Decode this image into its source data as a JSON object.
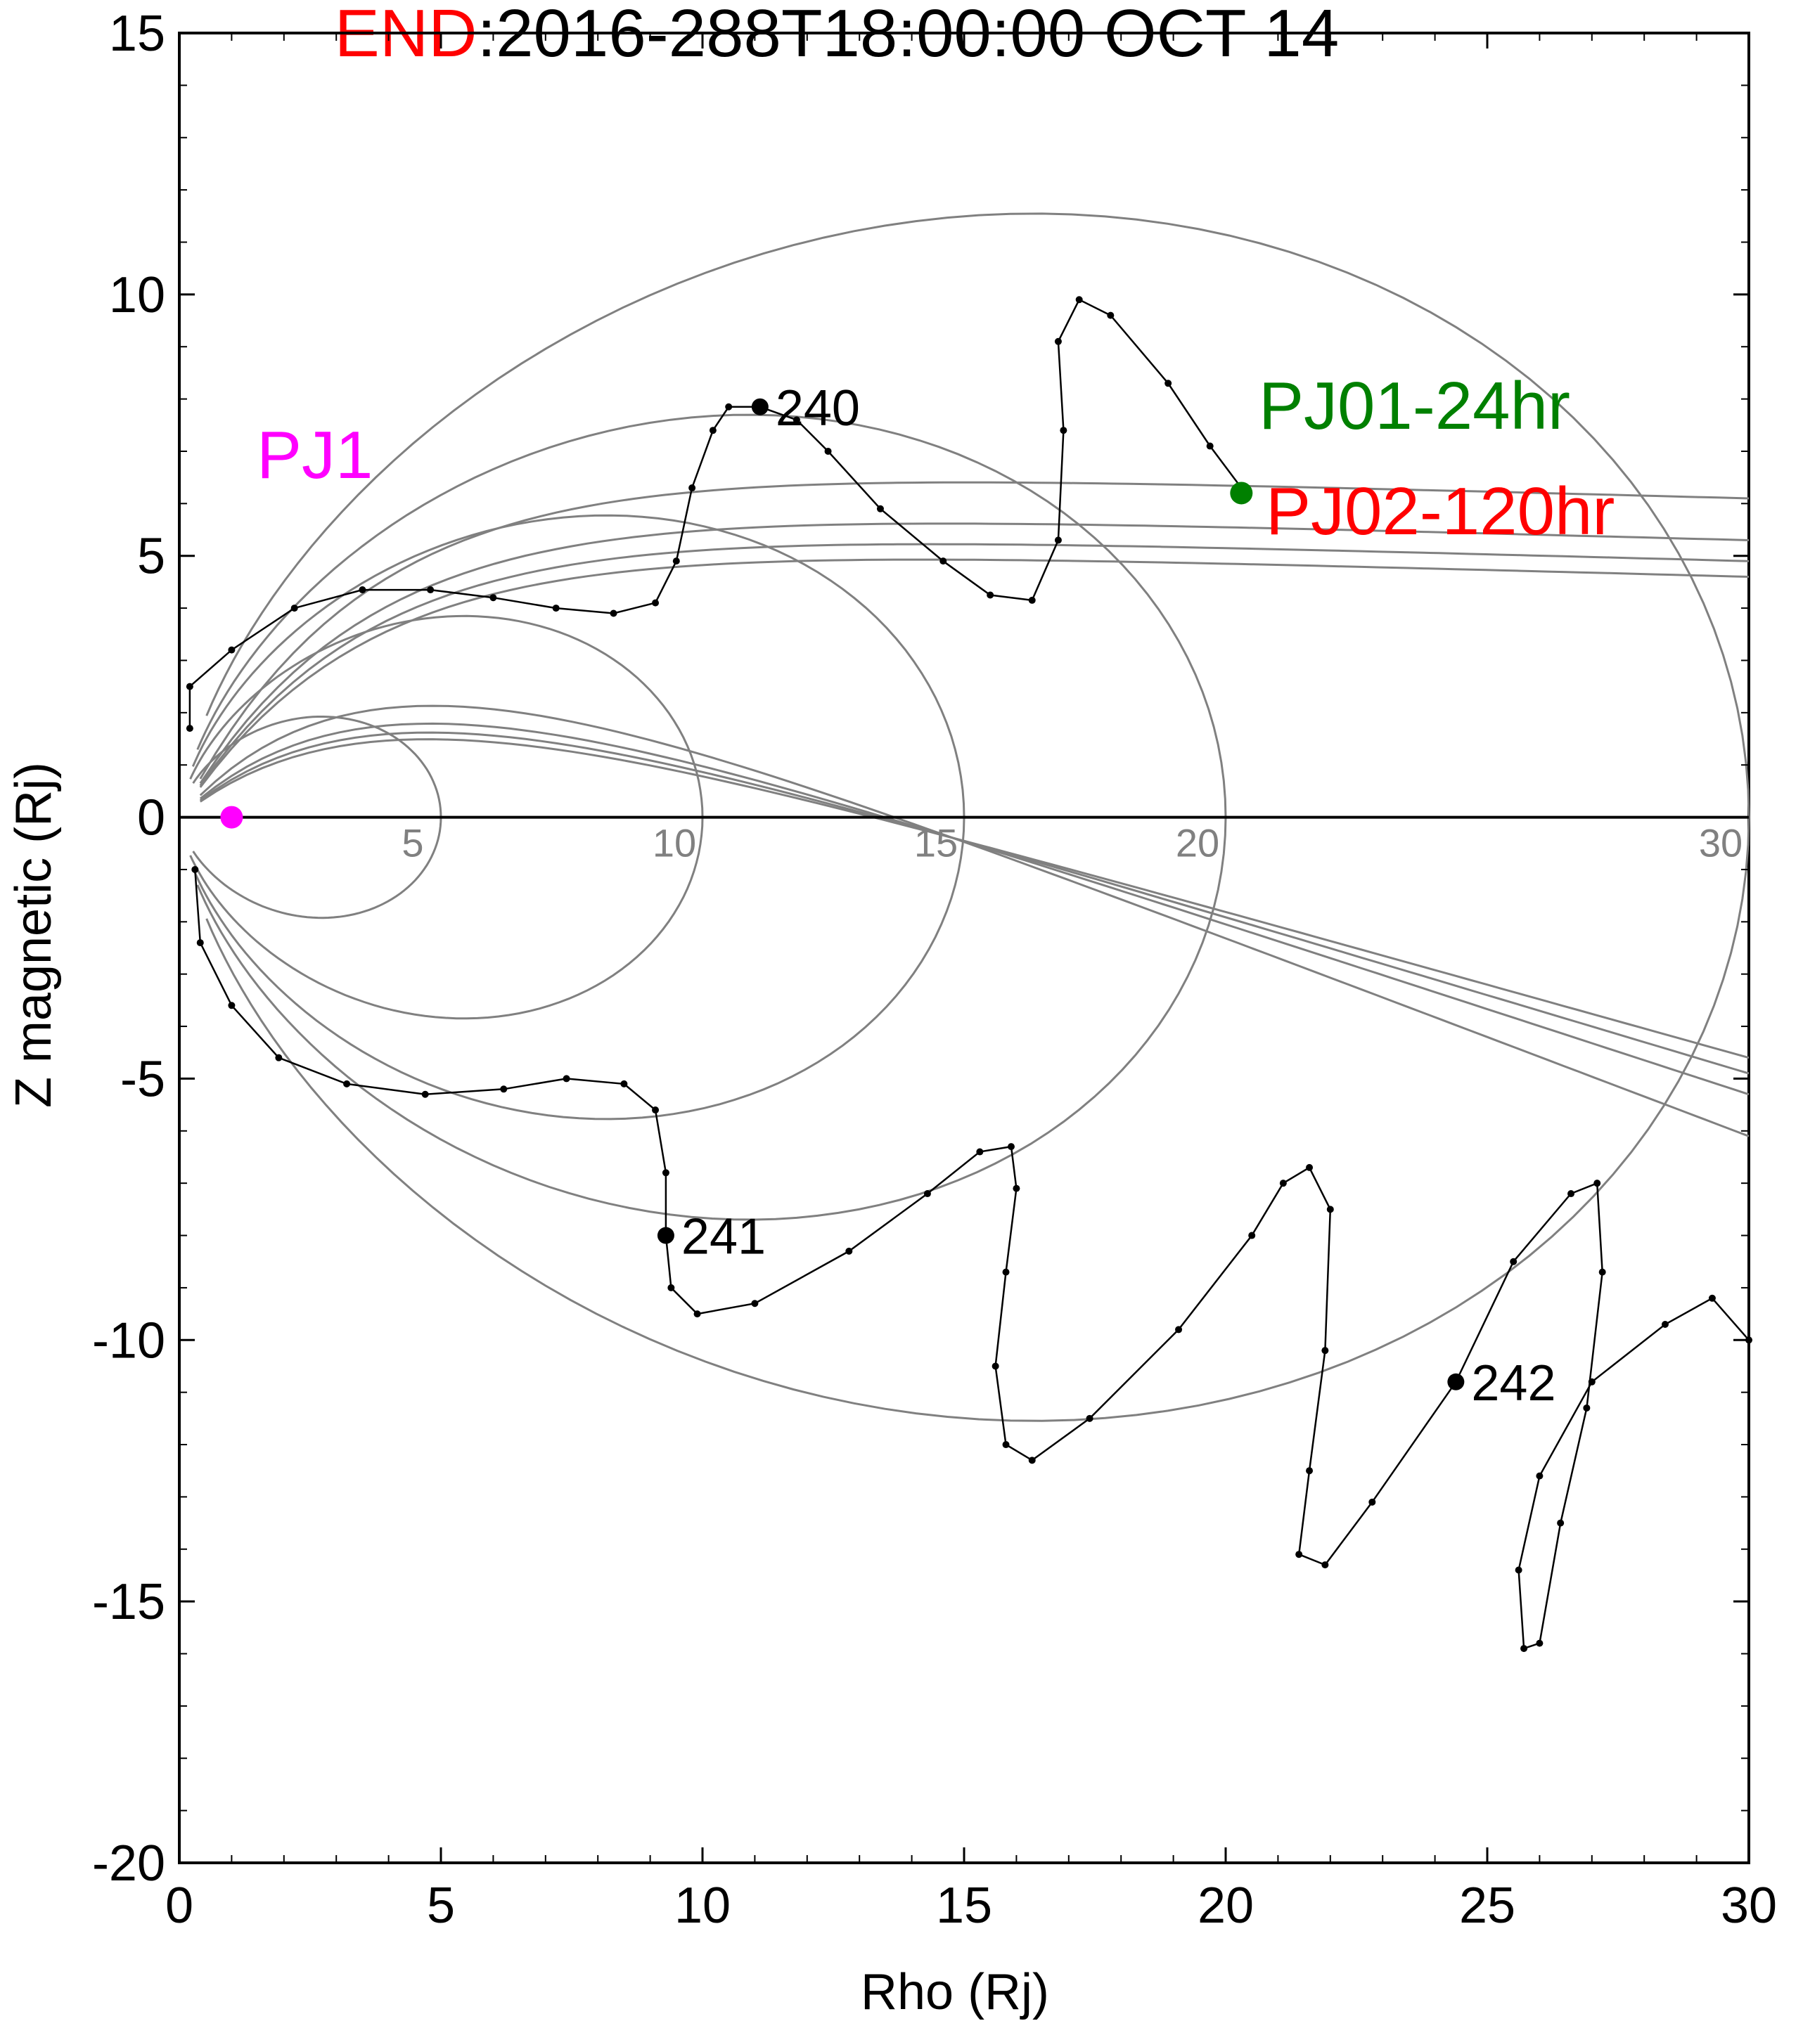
{
  "title": {
    "prefix": "END",
    "prefix_color": "#ff0000",
    "text": ":2016-288T18:00:00 OCT 14"
  },
  "chart_data": {
    "type": "line",
    "xlabel": "Rho (Rj)",
    "ylabel": "Z magnetic (Rj)",
    "xlim": [
      0,
      30
    ],
    "ylim": [
      -20,
      15
    ],
    "x_ticks": [
      "0",
      "5",
      "10",
      "15",
      "20",
      "25",
      "30"
    ],
    "y_ticks": [
      "15",
      "10",
      "5",
      "0",
      "-5",
      "-10",
      "-15",
      "-20"
    ],
    "grid": false,
    "field_lines": {
      "color": "#808080",
      "closed_loop_equator_crossings": [
        5,
        10,
        15,
        20,
        30
      ],
      "crossing_labels": [
        "5",
        "10",
        "15",
        "20",
        "30"
      ],
      "open_lines_asymptotes_north": [
        6.1,
        5.3,
        4.9,
        4.6
      ],
      "open_lines_asymptotes_south": [
        -6.1,
        -5.3,
        -4.9,
        -4.6
      ]
    },
    "trajectory": {
      "color": "#000000",
      "points": [
        [
          0.2,
          1.7
        ],
        [
          0.2,
          2.5
        ],
        [
          1.0,
          3.2
        ],
        [
          2.2,
          4.0
        ],
        [
          3.5,
          4.35
        ],
        [
          4.8,
          4.35
        ],
        [
          6.0,
          4.2
        ],
        [
          7.2,
          4.0
        ],
        [
          8.3,
          3.9
        ],
        [
          9.1,
          4.1
        ],
        [
          9.5,
          4.9
        ],
        [
          9.8,
          6.3
        ],
        [
          10.2,
          7.4
        ],
        [
          10.5,
          7.85
        ],
        [
          11.1,
          7.85
        ],
        [
          11.8,
          7.6
        ],
        [
          12.4,
          7.0
        ],
        [
          13.4,
          5.9
        ],
        [
          14.6,
          4.9
        ],
        [
          15.5,
          4.25
        ],
        [
          16.3,
          4.15
        ],
        [
          16.8,
          5.3
        ],
        [
          16.9,
          7.4
        ],
        [
          16.8,
          9.1
        ],
        [
          17.2,
          9.9
        ],
        [
          17.8,
          9.6
        ],
        [
          18.9,
          8.3
        ],
        [
          19.7,
          7.1
        ],
        [
          20.3,
          6.3
        ],
        [
          20.3,
          6.2
        ],
        [
          0.3,
          -1.0
        ],
        [
          0.4,
          -2.4
        ],
        [
          1.0,
          -3.6
        ],
        [
          1.9,
          -4.6
        ],
        [
          3.2,
          -5.1
        ],
        [
          4.7,
          -5.3
        ],
        [
          6.2,
          -5.2
        ],
        [
          7.4,
          -5.0
        ],
        [
          8.5,
          -5.1
        ],
        [
          9.1,
          -5.6
        ],
        [
          9.3,
          -6.8
        ],
        [
          9.3,
          -8.0
        ],
        [
          9.4,
          -9.0
        ],
        [
          9.9,
          -9.5
        ],
        [
          11.0,
          -9.3
        ],
        [
          12.8,
          -8.3
        ],
        [
          14.3,
          -7.2
        ],
        [
          15.3,
          -6.4
        ],
        [
          15.9,
          -6.3
        ],
        [
          16.0,
          -7.1
        ],
        [
          15.8,
          -8.7
        ],
        [
          15.6,
          -10.5
        ],
        [
          15.8,
          -12.0
        ],
        [
          16.3,
          -12.3
        ],
        [
          17.4,
          -11.5
        ],
        [
          19.1,
          -9.8
        ],
        [
          20.5,
          -8.0
        ],
        [
          21.1,
          -7.0
        ],
        [
          21.6,
          -6.7
        ],
        [
          22.0,
          -7.5
        ],
        [
          21.9,
          -10.2
        ],
        [
          21.6,
          -12.5
        ],
        [
          21.4,
          -14.1
        ],
        [
          21.9,
          -14.3
        ],
        [
          22.8,
          -13.1
        ],
        [
          24.4,
          -10.8
        ],
        [
          25.5,
          -8.5
        ],
        [
          26.6,
          -7.2
        ],
        [
          27.1,
          -7.0
        ],
        [
          27.2,
          -8.7
        ],
        [
          26.9,
          -11.3
        ],
        [
          26.4,
          -13.5
        ],
        [
          26.0,
          -15.8
        ],
        [
          25.7,
          -15.9
        ],
        [
          25.6,
          -14.4
        ],
        [
          26.0,
          -12.6
        ],
        [
          27.0,
          -10.8
        ],
        [
          28.4,
          -9.7
        ],
        [
          29.3,
          -9.2
        ],
        [
          30,
          -10
        ]
      ],
      "labeled_days": [
        {
          "label": "240",
          "x": 11.1,
          "y": 7.85
        },
        {
          "label": "241",
          "x": 9.3,
          "y": -8.0
        },
        {
          "label": "242",
          "x": 24.4,
          "y": -10.8
        }
      ]
    },
    "markers": [
      {
        "label": "PJ1",
        "x": 1.0,
        "y": 0.0,
        "color": "#ff00ff"
      },
      {
        "label": "PJ01-24hr",
        "x": 20.3,
        "y": 6.2,
        "color": "#008000"
      },
      {
        "label": "PJ02-120hr",
        "x": 20.3,
        "y": 6.2,
        "color": "#ff0000"
      }
    ]
  }
}
